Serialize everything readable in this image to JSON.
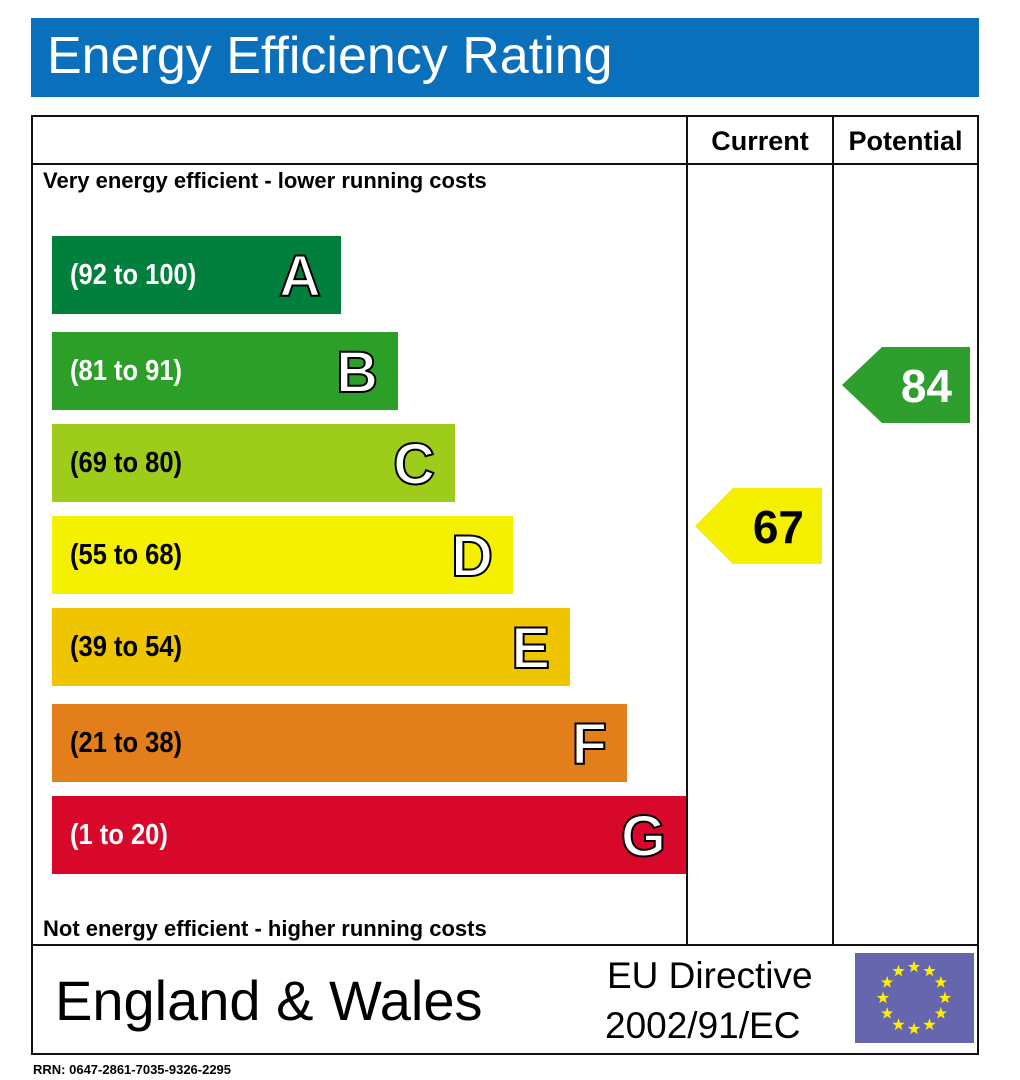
{
  "title": "Energy Efficiency Rating",
  "columns": {
    "current": "Current",
    "potential": "Potential"
  },
  "top_note": "Very energy efficient - lower running costs",
  "bottom_note": "Not energy efficient - higher running costs",
  "footer": {
    "region": "England & Wales",
    "directive_line1": "EU Directive",
    "directive_line2": "2002/91/EC",
    "flag": "eu-flag"
  },
  "rrn": "RRN: 0647-2861-7035-9326-2295",
  "chart_data": {
    "type": "bar",
    "bands": [
      {
        "letter": "A",
        "range": "(92 to 100)",
        "color": "#007f3d"
      },
      {
        "letter": "B",
        "range": "(81 to 91)",
        "color": "#2c9f29"
      },
      {
        "letter": "C",
        "range": "(69 to 80)",
        "color": "#9dcc1a"
      },
      {
        "letter": "D",
        "range": "(55 to 68)",
        "color": "#f5f000"
      },
      {
        "letter": "E",
        "range": "(39 to 54)",
        "color": "#efc400"
      },
      {
        "letter": "F",
        "range": "(21 to 38)",
        "color": "#e27f1a"
      },
      {
        "letter": "G",
        "range": "(1 to 20)",
        "color": "#d8082a"
      }
    ],
    "current": {
      "value": 67,
      "band": "D",
      "color": "#f5f000"
    },
    "potential": {
      "value": 84,
      "band": "B",
      "color": "#2e9e2f"
    }
  }
}
